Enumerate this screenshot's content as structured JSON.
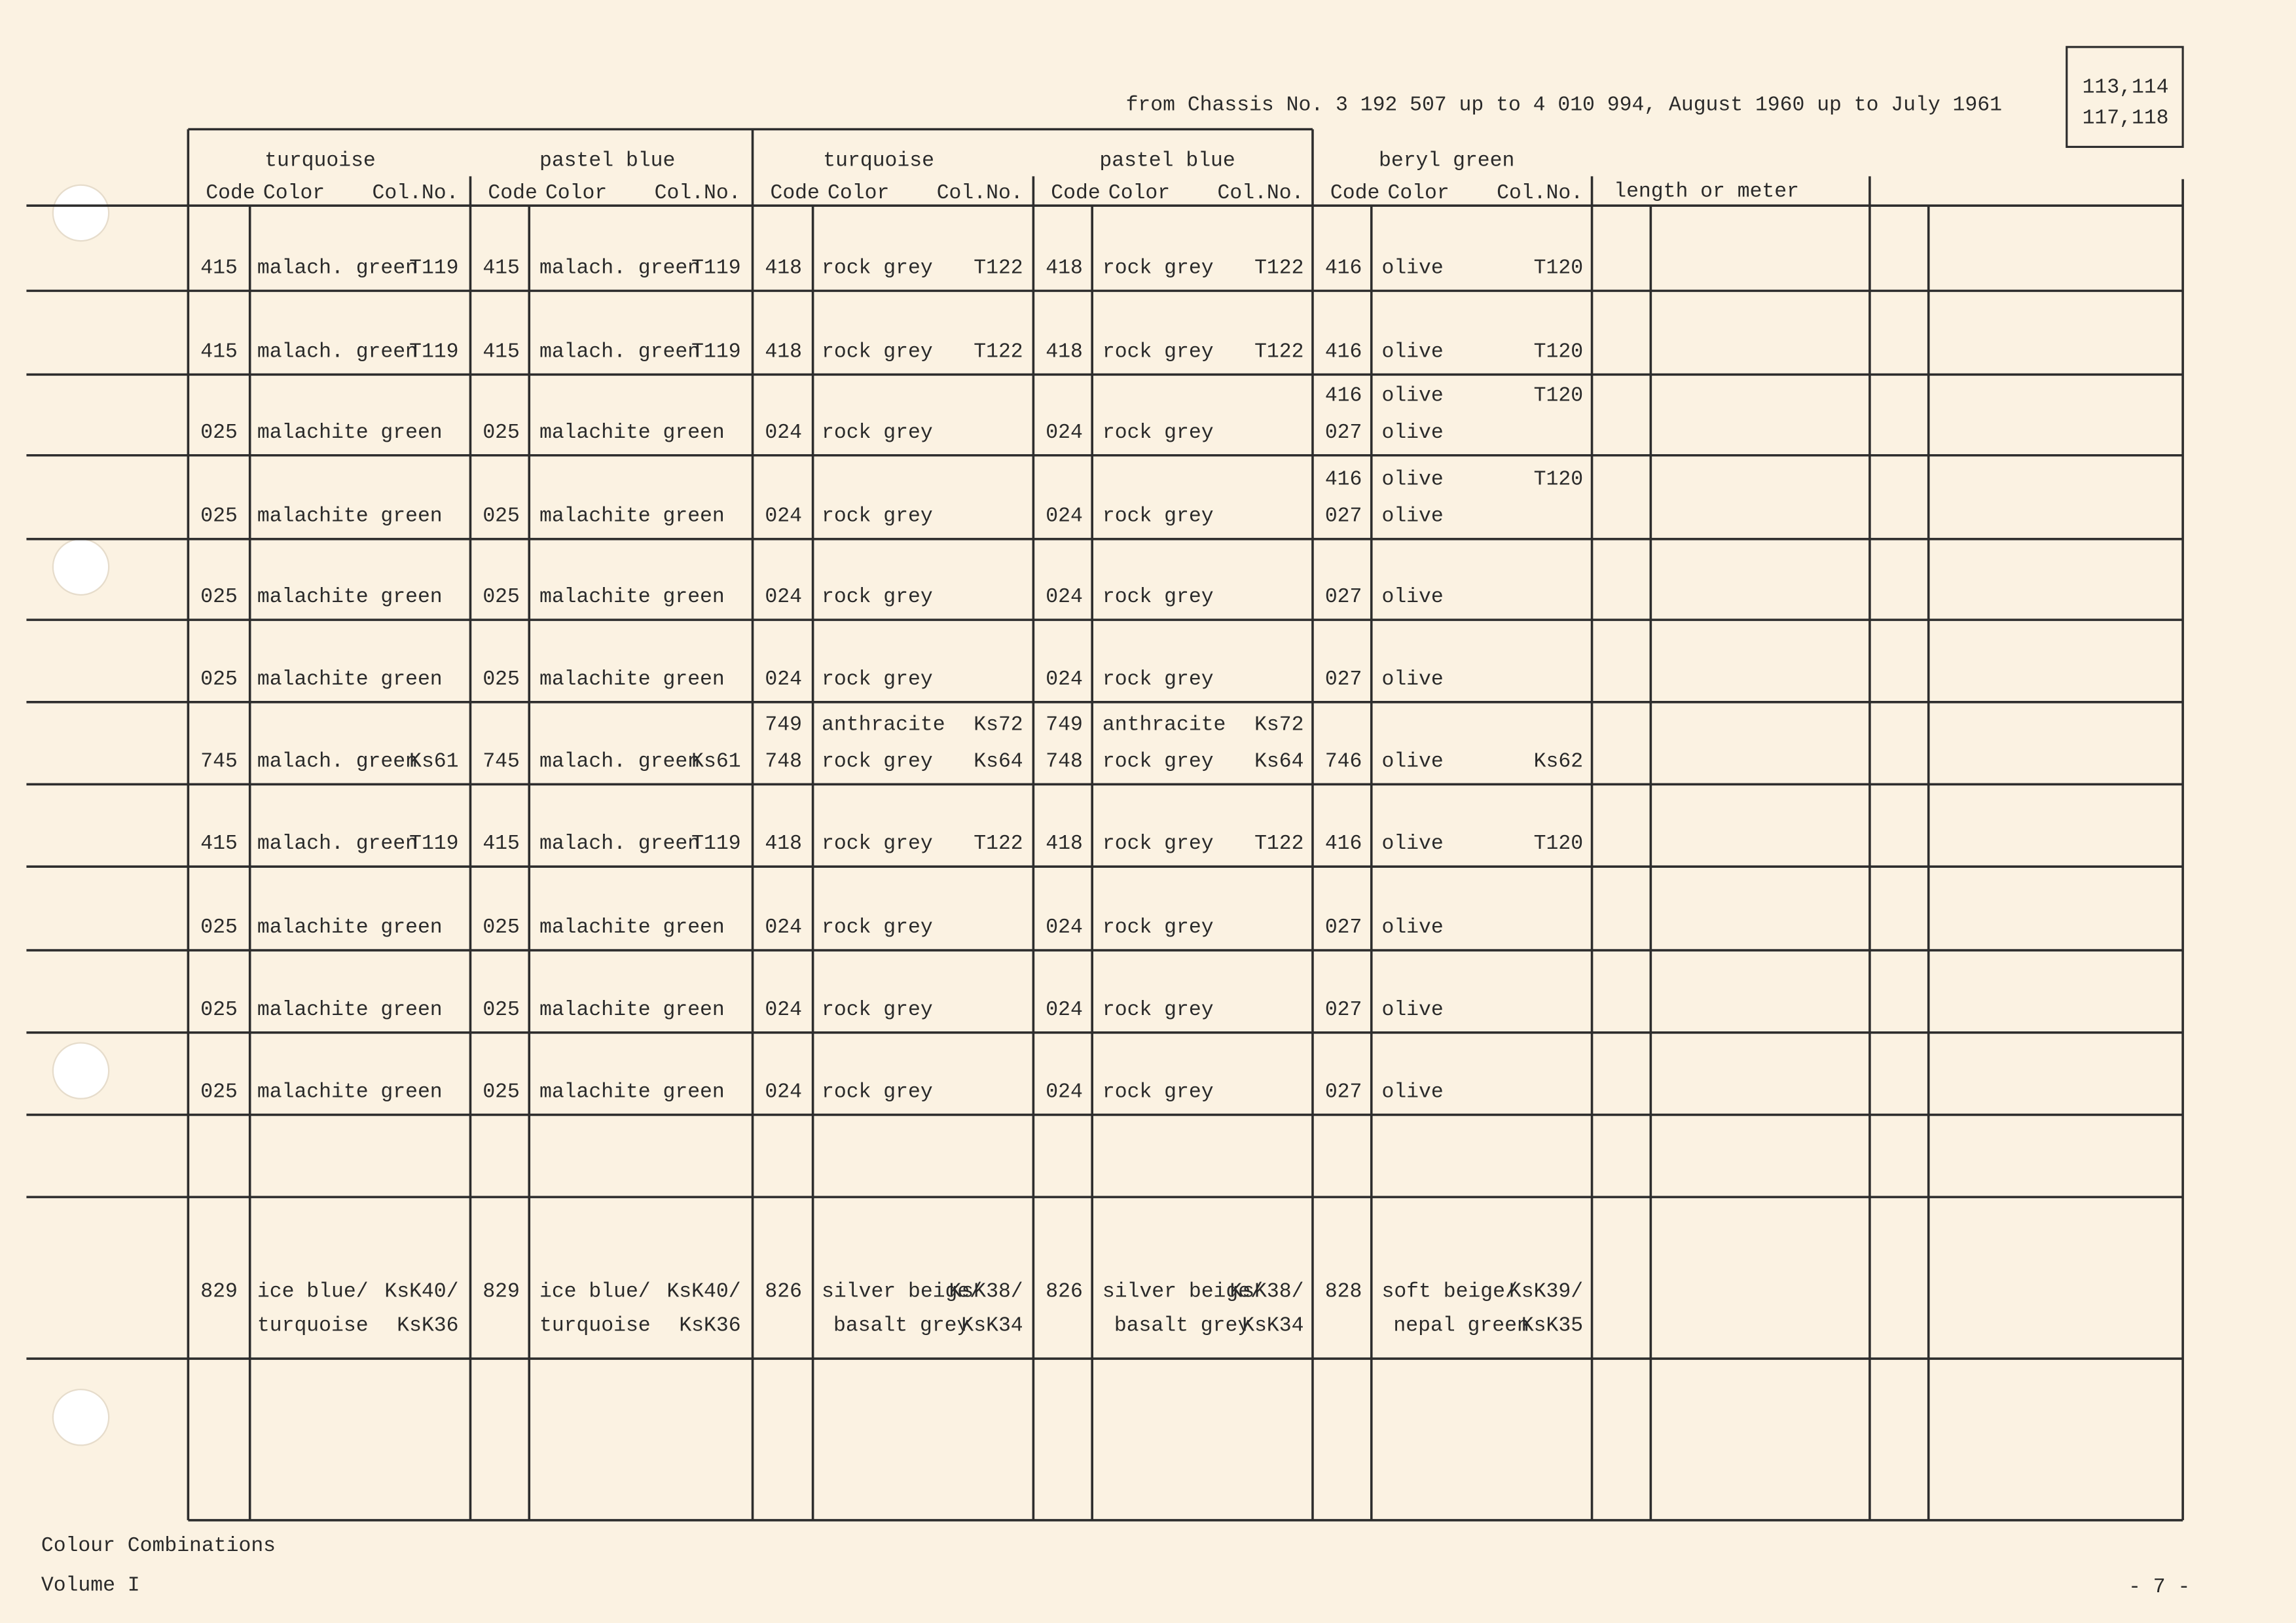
{
  "header": {
    "chassis_note": "from Chassis No. 3 192 507 up to 4 010 994, August 1960 up to July 1961",
    "page_ref": [
      "113,114",
      "117,118"
    ]
  },
  "table": {
    "groups": [
      "turquoise",
      "pastel blue",
      "turquoise",
      "pastel blue",
      "beryl green"
    ],
    "sub_headers": [
      "Code",
      "Color",
      "Col.No."
    ],
    "extra_header": "length or meter",
    "rows": [
      [
        {
          "lines": [
            {
              "code": "415",
              "color": "malach. green",
              "col_no": "T119"
            }
          ]
        },
        {
          "lines": [
            {
              "code": "415",
              "color": "malach. green",
              "col_no": "T119"
            }
          ]
        },
        {
          "lines": [
            {
              "code": "418",
              "color": "rock grey",
              "col_no": "T122"
            }
          ]
        },
        {
          "lines": [
            {
              "code": "418",
              "color": "rock grey",
              "col_no": "T122"
            }
          ]
        },
        {
          "lines": [
            {
              "code": "416",
              "color": "olive",
              "col_no": "T120"
            }
          ]
        }
      ],
      [
        {
          "lines": [
            {
              "code": "415",
              "color": "malach. green",
              "col_no": "T119"
            }
          ]
        },
        {
          "lines": [
            {
              "code": "415",
              "color": "malach. green",
              "col_no": "T119"
            }
          ]
        },
        {
          "lines": [
            {
              "code": "418",
              "color": "rock grey",
              "col_no": "T122"
            }
          ]
        },
        {
          "lines": [
            {
              "code": "418",
              "color": "rock grey",
              "col_no": "T122"
            }
          ]
        },
        {
          "lines": [
            {
              "code": "416",
              "color": "olive",
              "col_no": "T120"
            }
          ]
        }
      ],
      [
        {
          "lines": [
            {
              "code": "025",
              "color": "malachite green"
            }
          ]
        },
        {
          "lines": [
            {
              "code": "025",
              "color": "malachite green"
            }
          ]
        },
        {
          "lines": [
            {
              "code": "024",
              "color": "rock grey"
            }
          ]
        },
        {
          "lines": [
            {
              "code": "024",
              "color": "rock grey"
            }
          ]
        },
        {
          "lines": [
            {
              "code": "416",
              "color": "olive",
              "col_no": "T120",
              "ink": "#f07a3a"
            },
            {
              "code": "027",
              "color": "olive"
            }
          ]
        }
      ],
      [
        {
          "lines": [
            {
              "code": "025",
              "color": "malachite green"
            }
          ]
        },
        {
          "lines": [
            {
              "code": "025",
              "color": "malachite green"
            }
          ]
        },
        {
          "lines": [
            {
              "code": "024",
              "color": "rock grey"
            }
          ]
        },
        {
          "lines": [
            {
              "code": "024",
              "color": "rock grey"
            }
          ]
        },
        {
          "lines": [
            {
              "code": "416",
              "color": "olive",
              "col_no": "T120",
              "ink": "#f07a3a"
            },
            {
              "code": "027",
              "color": "olive"
            }
          ]
        }
      ],
      [
        {
          "lines": [
            {
              "code": "025",
              "color": "malachite green"
            }
          ]
        },
        {
          "lines": [
            {
              "code": "025",
              "color": "malachite green"
            }
          ]
        },
        {
          "lines": [
            {
              "code": "024",
              "color": "rock grey"
            }
          ]
        },
        {
          "lines": [
            {
              "code": "024",
              "color": "rock grey"
            }
          ]
        },
        {
          "lines": [
            {
              "code": "027",
              "color": "olive"
            }
          ]
        }
      ],
      [
        {
          "lines": [
            {
              "code": "025",
              "color": "malachite green"
            }
          ]
        },
        {
          "lines": [
            {
              "code": "025",
              "color": "malachite green"
            }
          ]
        },
        {
          "lines": [
            {
              "code": "024",
              "color": "rock grey"
            }
          ]
        },
        {
          "lines": [
            {
              "code": "024",
              "color": "rock grey"
            }
          ]
        },
        {
          "lines": [
            {
              "code": "027",
              "color": "olive"
            }
          ]
        }
      ],
      [
        {
          "lines": [
            {
              "code": "745",
              "color": "malach. green",
              "col_no": "Ks61"
            }
          ]
        },
        {
          "lines": [
            {
              "code": "745",
              "color": "malach. green",
              "col_no": "Ks61"
            }
          ]
        },
        {
          "lines": [
            {
              "code": "749",
              "color": "anthracite",
              "col_no": "Ks72",
              "ink": "#f07a3a"
            },
            {
              "code": "748",
              "color": "rock grey",
              "col_no": "Ks64"
            }
          ]
        },
        {
          "lines": [
            {
              "code": "749",
              "color": "anthracite",
              "col_no": "Ks72",
              "ink": "#f07a3a"
            },
            {
              "code": "748",
              "color": "rock grey",
              "col_no": "Ks64"
            }
          ]
        },
        {
          "lines": [
            {
              "code": "746",
              "color": "olive",
              "col_no": "Ks62"
            }
          ]
        }
      ],
      [
        {
          "lines": [
            {
              "code": "415",
              "color": "malach. green",
              "col_no": "T119"
            }
          ]
        },
        {
          "lines": [
            {
              "code": "415",
              "color": "malach. green",
              "col_no": "T119"
            }
          ]
        },
        {
          "lines": [
            {
              "code": "418",
              "color": "rock grey",
              "col_no": "T122"
            }
          ]
        },
        {
          "lines": [
            {
              "code": "418",
              "color": "rock grey",
              "col_no": "T122"
            }
          ]
        },
        {
          "lines": [
            {
              "code": "416",
              "color": "olive",
              "col_no": "T120"
            }
          ]
        }
      ],
      [
        {
          "lines": [
            {
              "code": "025",
              "color": "malachite green"
            }
          ]
        },
        {
          "lines": [
            {
              "code": "025",
              "color": "malachite green"
            }
          ]
        },
        {
          "lines": [
            {
              "code": "024",
              "color": "rock grey"
            }
          ]
        },
        {
          "lines": [
            {
              "code": "024",
              "color": "rock grey"
            }
          ]
        },
        {
          "lines": [
            {
              "code": "027",
              "color": "olive"
            }
          ]
        }
      ],
      [
        {
          "lines": [
            {
              "code": "025",
              "color": "malachite green"
            }
          ]
        },
        {
          "lines": [
            {
              "code": "025",
              "color": "malachite green"
            }
          ]
        },
        {
          "lines": [
            {
              "code": "024",
              "color": "rock grey"
            }
          ]
        },
        {
          "lines": [
            {
              "code": "024",
              "color": "rock grey"
            }
          ]
        },
        {
          "lines": [
            {
              "code": "027",
              "color": "olive"
            }
          ]
        }
      ],
      [
        {
          "lines": [
            {
              "code": "025",
              "color": "malachite green"
            }
          ]
        },
        {
          "lines": [
            {
              "code": "025",
              "color": "malachite green"
            }
          ]
        },
        {
          "lines": [
            {
              "code": "024",
              "color": "rock grey"
            }
          ]
        },
        {
          "lines": [
            {
              "code": "024",
              "color": "rock grey"
            }
          ]
        },
        {
          "lines": [
            {
              "code": "027",
              "color": "olive"
            }
          ]
        }
      ],
      [],
      [
        {
          "lines": [
            {
              "code": "829",
              "color": "ice blue/",
              "col_no": "KsK40/"
            },
            {
              "color": "turquoise",
              "col_no": "KsK36"
            }
          ]
        },
        {
          "lines": [
            {
              "code": "829",
              "color": "ice blue/",
              "col_no": "KsK40/"
            },
            {
              "color": "turquoise",
              "col_no": "KsK36"
            }
          ]
        },
        {
          "lines": [
            {
              "code": "826",
              "color": "silver beige/",
              "col_no": "KsK38/"
            },
            {
              "color": "basalt grey",
              "col_no": "KsK34"
            }
          ]
        },
        {
          "lines": [
            {
              "code": "826",
              "color": "silver beige/",
              "col_no": "KsK38/"
            },
            {
              "color": "basalt grey",
              "col_no": "KsK34"
            }
          ]
        },
        {
          "lines": [
            {
              "code": "828",
              "color": "soft beige/",
              "col_no": "KsK39/"
            },
            {
              "color": "nepal green",
              "col_no": "KsK35"
            }
          ]
        }
      ],
      []
    ]
  },
  "footer": {
    "title": "Colour Combinations",
    "volume": "Volume I",
    "page": "- 7 -"
  }
}
